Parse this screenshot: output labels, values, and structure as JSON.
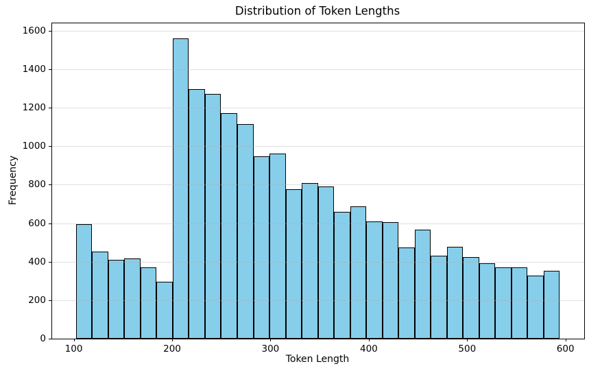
{
  "chart_data": {
    "type": "bar",
    "subtype": "histogram",
    "title": "Distribution of Token Lengths",
    "xlabel": "Token Length",
    "ylabel": "Frequency",
    "legend": null,
    "grid": "horizontal-only",
    "xlim": [
      78,
      619
    ],
    "ylim": [
      0,
      1638
    ],
    "xticks": [
      100,
      200,
      300,
      400,
      500,
      600
    ],
    "yticks": [
      0,
      200,
      400,
      600,
      800,
      1000,
      1200,
      1400,
      1600
    ],
    "bin_start": 102.3,
    "bin_width": 16.39,
    "frequencies": [
      595,
      453,
      410,
      418,
      372,
      297,
      1560,
      1295,
      1273,
      1172,
      1113,
      946,
      960,
      777,
      810,
      790,
      658,
      686,
      609,
      604,
      475,
      566,
      431,
      478,
      424,
      393,
      372,
      370,
      329,
      352
    ],
    "colors": {
      "bar_fill": "#87CEEB",
      "bar_edge": "#000000",
      "grid_line": "rgba(176,176,176,0.4)",
      "spine": "#000000",
      "text": "#000000",
      "background": "#ffffff"
    }
  }
}
